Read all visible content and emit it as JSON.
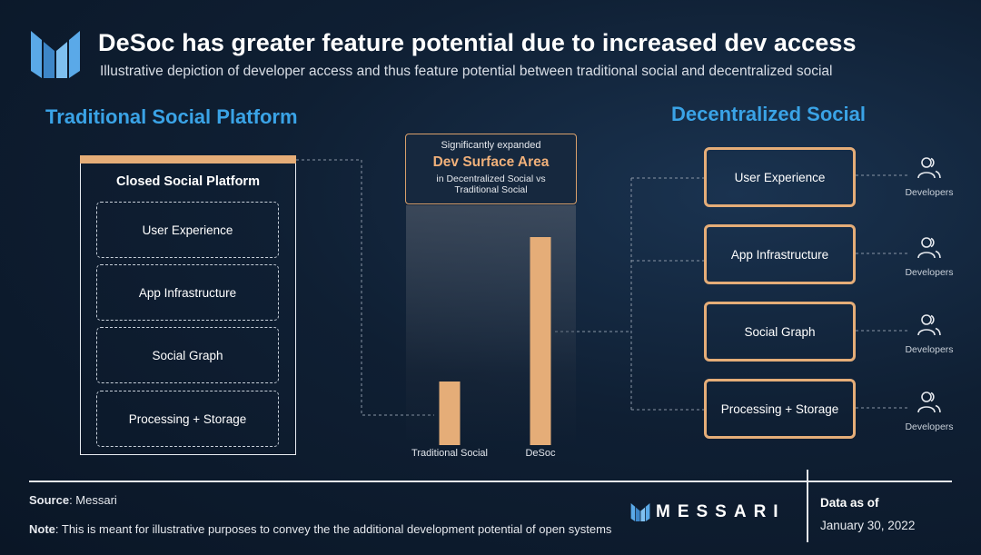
{
  "header": {
    "title": "DeSoc has greater feature potential due to increased dev access",
    "subtitle": "Illustrative depiction of developer access and thus feature potential between traditional social and decentralized social"
  },
  "left": {
    "section_title": "Traditional Social Platform",
    "box_title": "Closed Social Platform",
    "items": [
      "User Experience",
      "App Infrastructure",
      "Social Graph",
      "Processing + Storage"
    ]
  },
  "right": {
    "section_title": "Decentralized Social",
    "items": [
      "User Experience",
      "App Infrastructure",
      "Social Graph",
      "Processing + Storage"
    ],
    "developer_label": "Developers"
  },
  "callout": {
    "line1": "Significantly expanded",
    "line2": "Dev Surface Area",
    "line3": "in Decentralized Social vs Traditional Social"
  },
  "chart_data": {
    "type": "bar",
    "title": "Dev Surface Area",
    "categories": [
      "Traditional Social",
      "DeSoc"
    ],
    "values": [
      70,
      229
    ],
    "ylim": [
      0,
      250
    ],
    "xlabel": "",
    "ylabel": "",
    "grid": false,
    "color": "#e5ad78"
  },
  "footer": {
    "source_label": "Source",
    "source_value": ": Messari",
    "note_label": "Note",
    "note_value": ": This is meant for illustrative purposes to convey the the additional development potential of open systems",
    "brand": "MESSARI",
    "data_as_of_label": "Data as of",
    "date": "January 30, 2022"
  },
  "colors": {
    "accent_blue": "#3aa3e6",
    "accent_orange": "#e5ad78"
  }
}
